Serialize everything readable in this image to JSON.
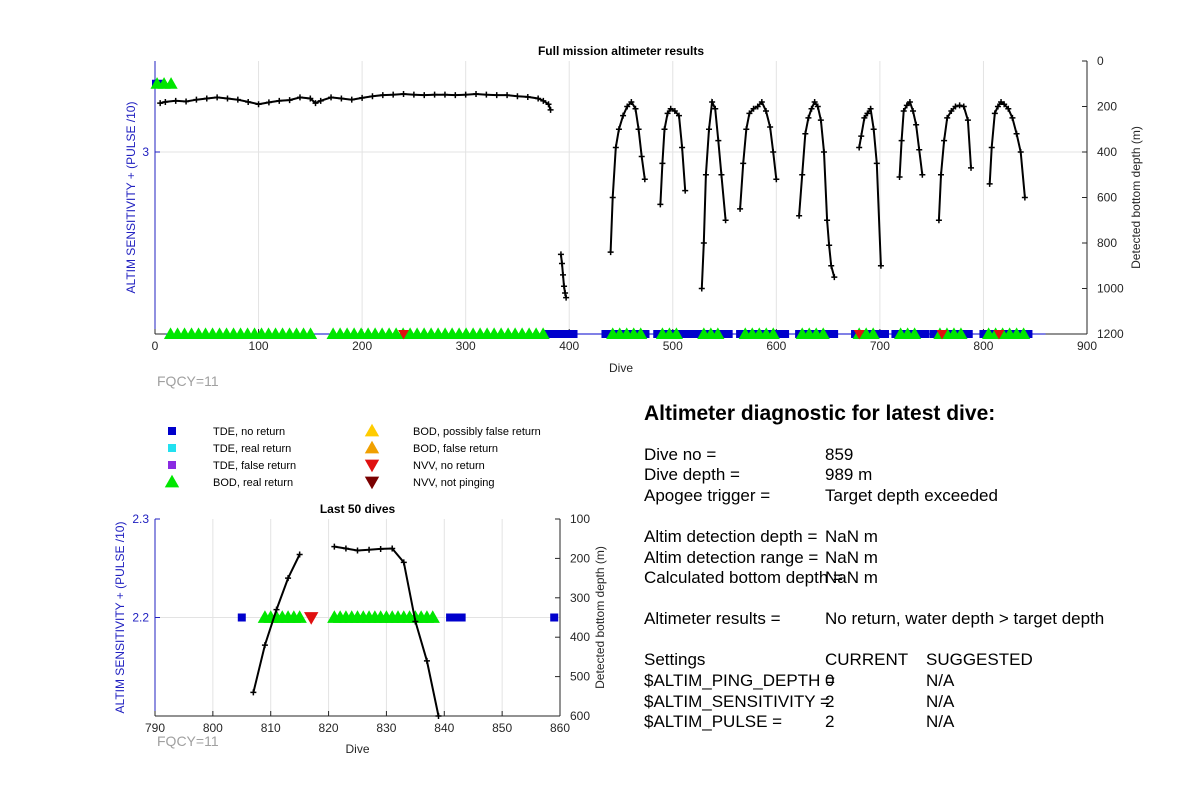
{
  "chart_data": [
    {
      "type": "scatter",
      "title": "Full mission altimeter results",
      "xlabel": "Dive",
      "ylabel_left": "ALTIM SENSITIVITY + (PULSE /10)",
      "ylabel_right": "Detected bottom depth (m)",
      "xlim": [
        0,
        900
      ],
      "ylim_left": [
        2.2,
        3.4
      ],
      "ylim_right_reversed": [
        0,
        1200
      ],
      "x_ticks": [
        "0",
        "100",
        "200",
        "300",
        "400",
        "500",
        "600",
        "700",
        "800",
        "900"
      ],
      "y_left_ticks": [
        "3"
      ],
      "y_right_ticks": [
        "0",
        "200",
        "400",
        "600",
        "800",
        "1000",
        "1200"
      ],
      "grid": true,
      "annotation": "FQCY=11",
      "setting_series": {
        "name": "ALTIM SENSITIVITY + (PULSE /10)",
        "segments": [
          {
            "x": [
              0,
              10
            ],
            "y": 3.3
          },
          {
            "x": [
              10,
              860
            ],
            "y": 2.2
          }
        ]
      },
      "bottom_depth_series": {
        "name": "Detected bottom depth (m)",
        "segments": [
          {
            "x": [
              5,
              10,
              20,
              30,
              40,
              50,
              60,
              70,
              80,
              90,
              100,
              110,
              120,
              130,
              140,
              150,
              155,
              160,
              170,
              180,
              190,
              200,
              210,
              220,
              230,
              240,
              250,
              260,
              270,
              280,
              290,
              300,
              310,
              320,
              330,
              340,
              350,
              360,
              370,
              375,
              380,
              382
            ],
            "y": [
              185,
              180,
              175,
              178,
              170,
              165,
              160,
              165,
              170,
              180,
              190,
              182,
              175,
              172,
              160,
              165,
              185,
              175,
              160,
              165,
              170,
              162,
              155,
              150,
              148,
              145,
              148,
              150,
              148,
              148,
              150,
              148,
              145,
              148,
              150,
              150,
              155,
              158,
              165,
              175,
              190,
              215
            ]
          },
          {
            "x": [
              392,
              393,
              394,
              395,
              396,
              397
            ],
            "y": [
              850,
              890,
              940,
              990,
              1020,
              1040
            ]
          },
          {
            "x": [
              440,
              442,
              445,
              448,
              452,
              456,
              460,
              464,
              467,
              470,
              473
            ],
            "y": [
              840,
              600,
              380,
              300,
              240,
              200,
              180,
              210,
              300,
              420,
              520
            ]
          },
          {
            "x": [
              488,
              490,
              492,
              495,
              498,
              502,
              506,
              509,
              512
            ],
            "y": [
              630,
              450,
              300,
              230,
              210,
              220,
              240,
              380,
              570
            ]
          },
          {
            "x": [
              528,
              530,
              532,
              535,
              538,
              541,
              544,
              547,
              551
            ],
            "y": [
              1000,
              800,
              500,
              300,
              180,
              210,
              350,
              500,
              700
            ]
          },
          {
            "x": [
              565,
              568,
              571,
              574,
              578,
              582,
              586,
              590,
              594,
              597,
              600
            ],
            "y": [
              650,
              450,
              300,
              230,
              210,
              200,
              180,
              220,
              290,
              400,
              520
            ]
          },
          {
            "x": [
              622,
              625,
              628,
              631,
              634,
              637,
              640,
              643,
              646,
              649,
              651,
              653,
              656
            ],
            "y": [
              680,
              500,
              320,
              250,
              210,
              180,
              200,
              260,
              400,
              700,
              810,
              900,
              950
            ]
          },
          {
            "x": [
              680,
              682,
              685,
              688,
              691,
              694,
              697,
              701
            ],
            "y": [
              380,
              330,
              250,
              230,
              210,
              300,
              450,
              900
            ]
          },
          {
            "x": [
              719,
              721,
              723,
              726,
              729,
              732,
              735,
              738,
              741
            ],
            "y": [
              510,
              350,
              220,
              195,
              180,
              220,
              280,
              390,
              500
            ]
          },
          {
            "x": [
              757,
              759,
              762,
              765,
              769,
              773,
              777,
              781,
              785,
              788
            ],
            "y": [
              700,
              500,
              350,
              250,
              220,
              200,
              195,
              200,
              260,
              470
            ]
          },
          {
            "x": [
              806,
              808,
              811,
              814,
              817,
              820,
              824,
              828,
              832,
              836,
              840
            ],
            "y": [
              540,
              380,
              230,
              200,
              180,
              190,
              210,
              250,
              320,
              400,
              600
            ]
          }
        ]
      },
      "legend": [
        {
          "label": "TDE, no return",
          "marker": "square",
          "color": "#0000cc"
        },
        {
          "label": "TDE, real return",
          "marker": "square",
          "color": "#22e1f0"
        },
        {
          "label": "TDE, false return",
          "marker": "square",
          "color": "#8a2be2"
        },
        {
          "label": "BOD, real return",
          "marker": "triangle-up",
          "color": "#00e600"
        },
        {
          "label": "BOD, possibly false return",
          "marker": "triangle-up",
          "color": "#ffcc00"
        },
        {
          "label": "BOD, false return",
          "marker": "triangle-up",
          "color": "#f0a000"
        },
        {
          "label": "NVV, no return",
          "marker": "triangle-down",
          "color": "#e01010"
        },
        {
          "label": "NVV, not pinging",
          "marker": "triangle-down",
          "color": "#7a0000"
        }
      ],
      "legend_placement": "below-left",
      "marker_runs": [
        {
          "kind": "BOD, real return",
          "y": 3.3,
          "x_from": 2,
          "x_to": 18
        },
        {
          "kind": "TDE, no return",
          "y": 2.2,
          "x_from": 380,
          "x_to": 405
        },
        {
          "kind": "BOD, real return",
          "y": 2.2,
          "x_from": 15,
          "x_to": 155
        },
        {
          "kind": "BOD, real return",
          "y": 2.2,
          "x_from": 172,
          "x_to": 378
        },
        {
          "kind": "NVV, no return",
          "y": 2.2,
          "x_from": 240,
          "x_to": 244
        },
        {
          "kind": "TDE, no return",
          "y": 2.2,
          "x_from": 435,
          "x_to": 475
        },
        {
          "kind": "BOD, real return",
          "y": 2.2,
          "x_from": 442,
          "x_to": 470
        },
        {
          "kind": "TDE, no return",
          "y": 2.2,
          "x_from": 485,
          "x_to": 520
        },
        {
          "kind": "BOD, real return",
          "y": 2.2,
          "x_from": 490,
          "x_to": 510
        },
        {
          "kind": "TDE, no return",
          "y": 2.2,
          "x_from": 525,
          "x_to": 556
        },
        {
          "kind": "BOD, real return",
          "y": 2.2,
          "x_from": 530,
          "x_to": 545
        },
        {
          "kind": "TDE, no return",
          "y": 2.2,
          "x_from": 565,
          "x_to": 610
        },
        {
          "kind": "BOD, real return",
          "y": 2.2,
          "x_from": 570,
          "x_to": 600
        },
        {
          "kind": "TDE, no return",
          "y": 2.2,
          "x_from": 622,
          "x_to": 660
        },
        {
          "kind": "BOD, real return",
          "y": 2.2,
          "x_from": 625,
          "x_to": 650
        },
        {
          "kind": "TDE, no return",
          "y": 2.2,
          "x_from": 676,
          "x_to": 705
        },
        {
          "kind": "BOD, real return",
          "y": 2.2,
          "x_from": 680,
          "x_to": 700
        },
        {
          "kind": "NVV, no return",
          "y": 2.2,
          "x_from": 680,
          "x_to": 686
        },
        {
          "kind": "TDE, no return",
          "y": 2.2,
          "x_from": 715,
          "x_to": 745
        },
        {
          "kind": "BOD, real return",
          "y": 2.2,
          "x_from": 720,
          "x_to": 740
        },
        {
          "kind": "TDE, no return",
          "y": 2.2,
          "x_from": 752,
          "x_to": 790
        },
        {
          "kind": "BOD, real return",
          "y": 2.2,
          "x_from": 758,
          "x_to": 785
        },
        {
          "kind": "NVV, no return",
          "y": 2.2,
          "x_from": 760,
          "x_to": 762
        },
        {
          "kind": "TDE, no return",
          "y": 2.2,
          "x_from": 800,
          "x_to": 845
        },
        {
          "kind": "BOD, real return",
          "y": 2.2,
          "x_from": 805,
          "x_to": 840
        },
        {
          "kind": "NVV, no return",
          "y": 2.2,
          "x_from": 815,
          "x_to": 817
        }
      ]
    },
    {
      "type": "scatter",
      "title": "Last 50 dives",
      "xlabel": "Dive",
      "ylabel_left": "ALTIM SENSITIVITY + (PULSE /10)",
      "ylabel_right": "Detected bottom depth (m)",
      "xlim": [
        790,
        860
      ],
      "ylim_left": [
        2.1,
        2.3
      ],
      "ylim_right_reversed": [
        100,
        600
      ],
      "x_ticks": [
        "790",
        "800",
        "810",
        "820",
        "830",
        "840",
        "850",
        "860"
      ],
      "y_left_ticks": [
        "2.2",
        "2.3"
      ],
      "y_right_ticks": [
        "100",
        "200",
        "300",
        "400",
        "500",
        "600"
      ],
      "grid": true,
      "annotation": "FQCY=11",
      "bottom_depth_series": {
        "name": "Detected bottom depth (m)",
        "segments": [
          {
            "x": [
              807,
              809,
              811,
              813,
              815
            ],
            "y": [
              540,
              420,
              330,
              250,
              190
            ]
          },
          {
            "x": [
              821,
              823,
              825,
              827,
              829,
              831,
              833,
              835,
              837,
              839
            ],
            "y": [
              170,
              175,
              180,
              178,
              176,
              175,
              210,
              360,
              460,
              600
            ]
          }
        ]
      },
      "markers": [
        {
          "kind": "TDE, no return",
          "x": 805,
          "y": 2.2
        },
        {
          "kind": "BOD, real return",
          "x": 809,
          "y": 2.2
        },
        {
          "kind": "BOD, real return",
          "x": 810,
          "y": 2.2
        },
        {
          "kind": "BOD, real return",
          "x": 811,
          "y": 2.2
        },
        {
          "kind": "BOD, real return",
          "x": 812,
          "y": 2.2
        },
        {
          "kind": "BOD, real return",
          "x": 813,
          "y": 2.2
        },
        {
          "kind": "BOD, real return",
          "x": 814,
          "y": 2.2
        },
        {
          "kind": "BOD, real return",
          "x": 815,
          "y": 2.2
        },
        {
          "kind": "NVV, no return",
          "x": 817,
          "y": 2.2
        },
        {
          "kind": "BOD, real return",
          "x": 821,
          "y": 2.2
        },
        {
          "kind": "BOD, real return",
          "x": 822,
          "y": 2.2
        },
        {
          "kind": "BOD, real return",
          "x": 823,
          "y": 2.2
        },
        {
          "kind": "BOD, real return",
          "x": 824,
          "y": 2.2
        },
        {
          "kind": "BOD, real return",
          "x": 825,
          "y": 2.2
        },
        {
          "kind": "BOD, real return",
          "x": 826,
          "y": 2.2
        },
        {
          "kind": "BOD, real return",
          "x": 827,
          "y": 2.2
        },
        {
          "kind": "BOD, real return",
          "x": 828,
          "y": 2.2
        },
        {
          "kind": "BOD, real return",
          "x": 829,
          "y": 2.2
        },
        {
          "kind": "BOD, real return",
          "x": 830,
          "y": 2.2
        },
        {
          "kind": "BOD, real return",
          "x": 831,
          "y": 2.2
        },
        {
          "kind": "BOD, real return",
          "x": 832,
          "y": 2.2
        },
        {
          "kind": "BOD, real return",
          "x": 833,
          "y": 2.2
        },
        {
          "kind": "BOD, real return",
          "x": 834,
          "y": 2.2
        },
        {
          "kind": "BOD, real return",
          "x": 835,
          "y": 2.2
        },
        {
          "kind": "BOD, real return",
          "x": 836,
          "y": 2.2
        },
        {
          "kind": "BOD, real return",
          "x": 837,
          "y": 2.2
        },
        {
          "kind": "BOD, real return",
          "x": 838,
          "y": 2.2
        },
        {
          "kind": "TDE, no return",
          "x": 841,
          "y": 2.2
        },
        {
          "kind": "TDE, no return",
          "x": 842,
          "y": 2.2
        },
        {
          "kind": "TDE, no return",
          "x": 843,
          "y": 2.2
        },
        {
          "kind": "TDE, no return",
          "x": 859,
          "y": 2.2
        }
      ]
    }
  ],
  "diagnostic": {
    "title": "Altimeter diagnostic for latest dive:",
    "dive_no_label": "Dive no =",
    "dive_no_value": "859",
    "dive_depth_label": "Dive depth =",
    "dive_depth_value": "989 m",
    "apogee_label": "Apogee trigger =",
    "apogee_value": "Target depth exceeded",
    "det_depth_label": "Altim detection depth =",
    "det_depth_value": "NaN m",
    "det_range_label": "Altim detection range =",
    "det_range_value": "NaN m",
    "calc_bottom_label": "Calculated bottom depth =",
    "calc_bottom_value": "NaN m",
    "results_label": "Altimeter results =",
    "results_value": "No return, water depth > target depth",
    "settings_header": "Settings",
    "current_header": "CURRENT",
    "suggested_header": "SUGGESTED",
    "ping_depth_label": "$ALTIM_PING_DEPTH =",
    "ping_depth_current": "0",
    "ping_depth_suggested": "N/A",
    "sensitivity_label": "$ALTIM_SENSITIVITY =",
    "sensitivity_current": "2",
    "sensitivity_suggested": "N/A",
    "pulse_label": "$ALTIM_PULSE =",
    "pulse_current": "2",
    "pulse_suggested": "N/A"
  }
}
